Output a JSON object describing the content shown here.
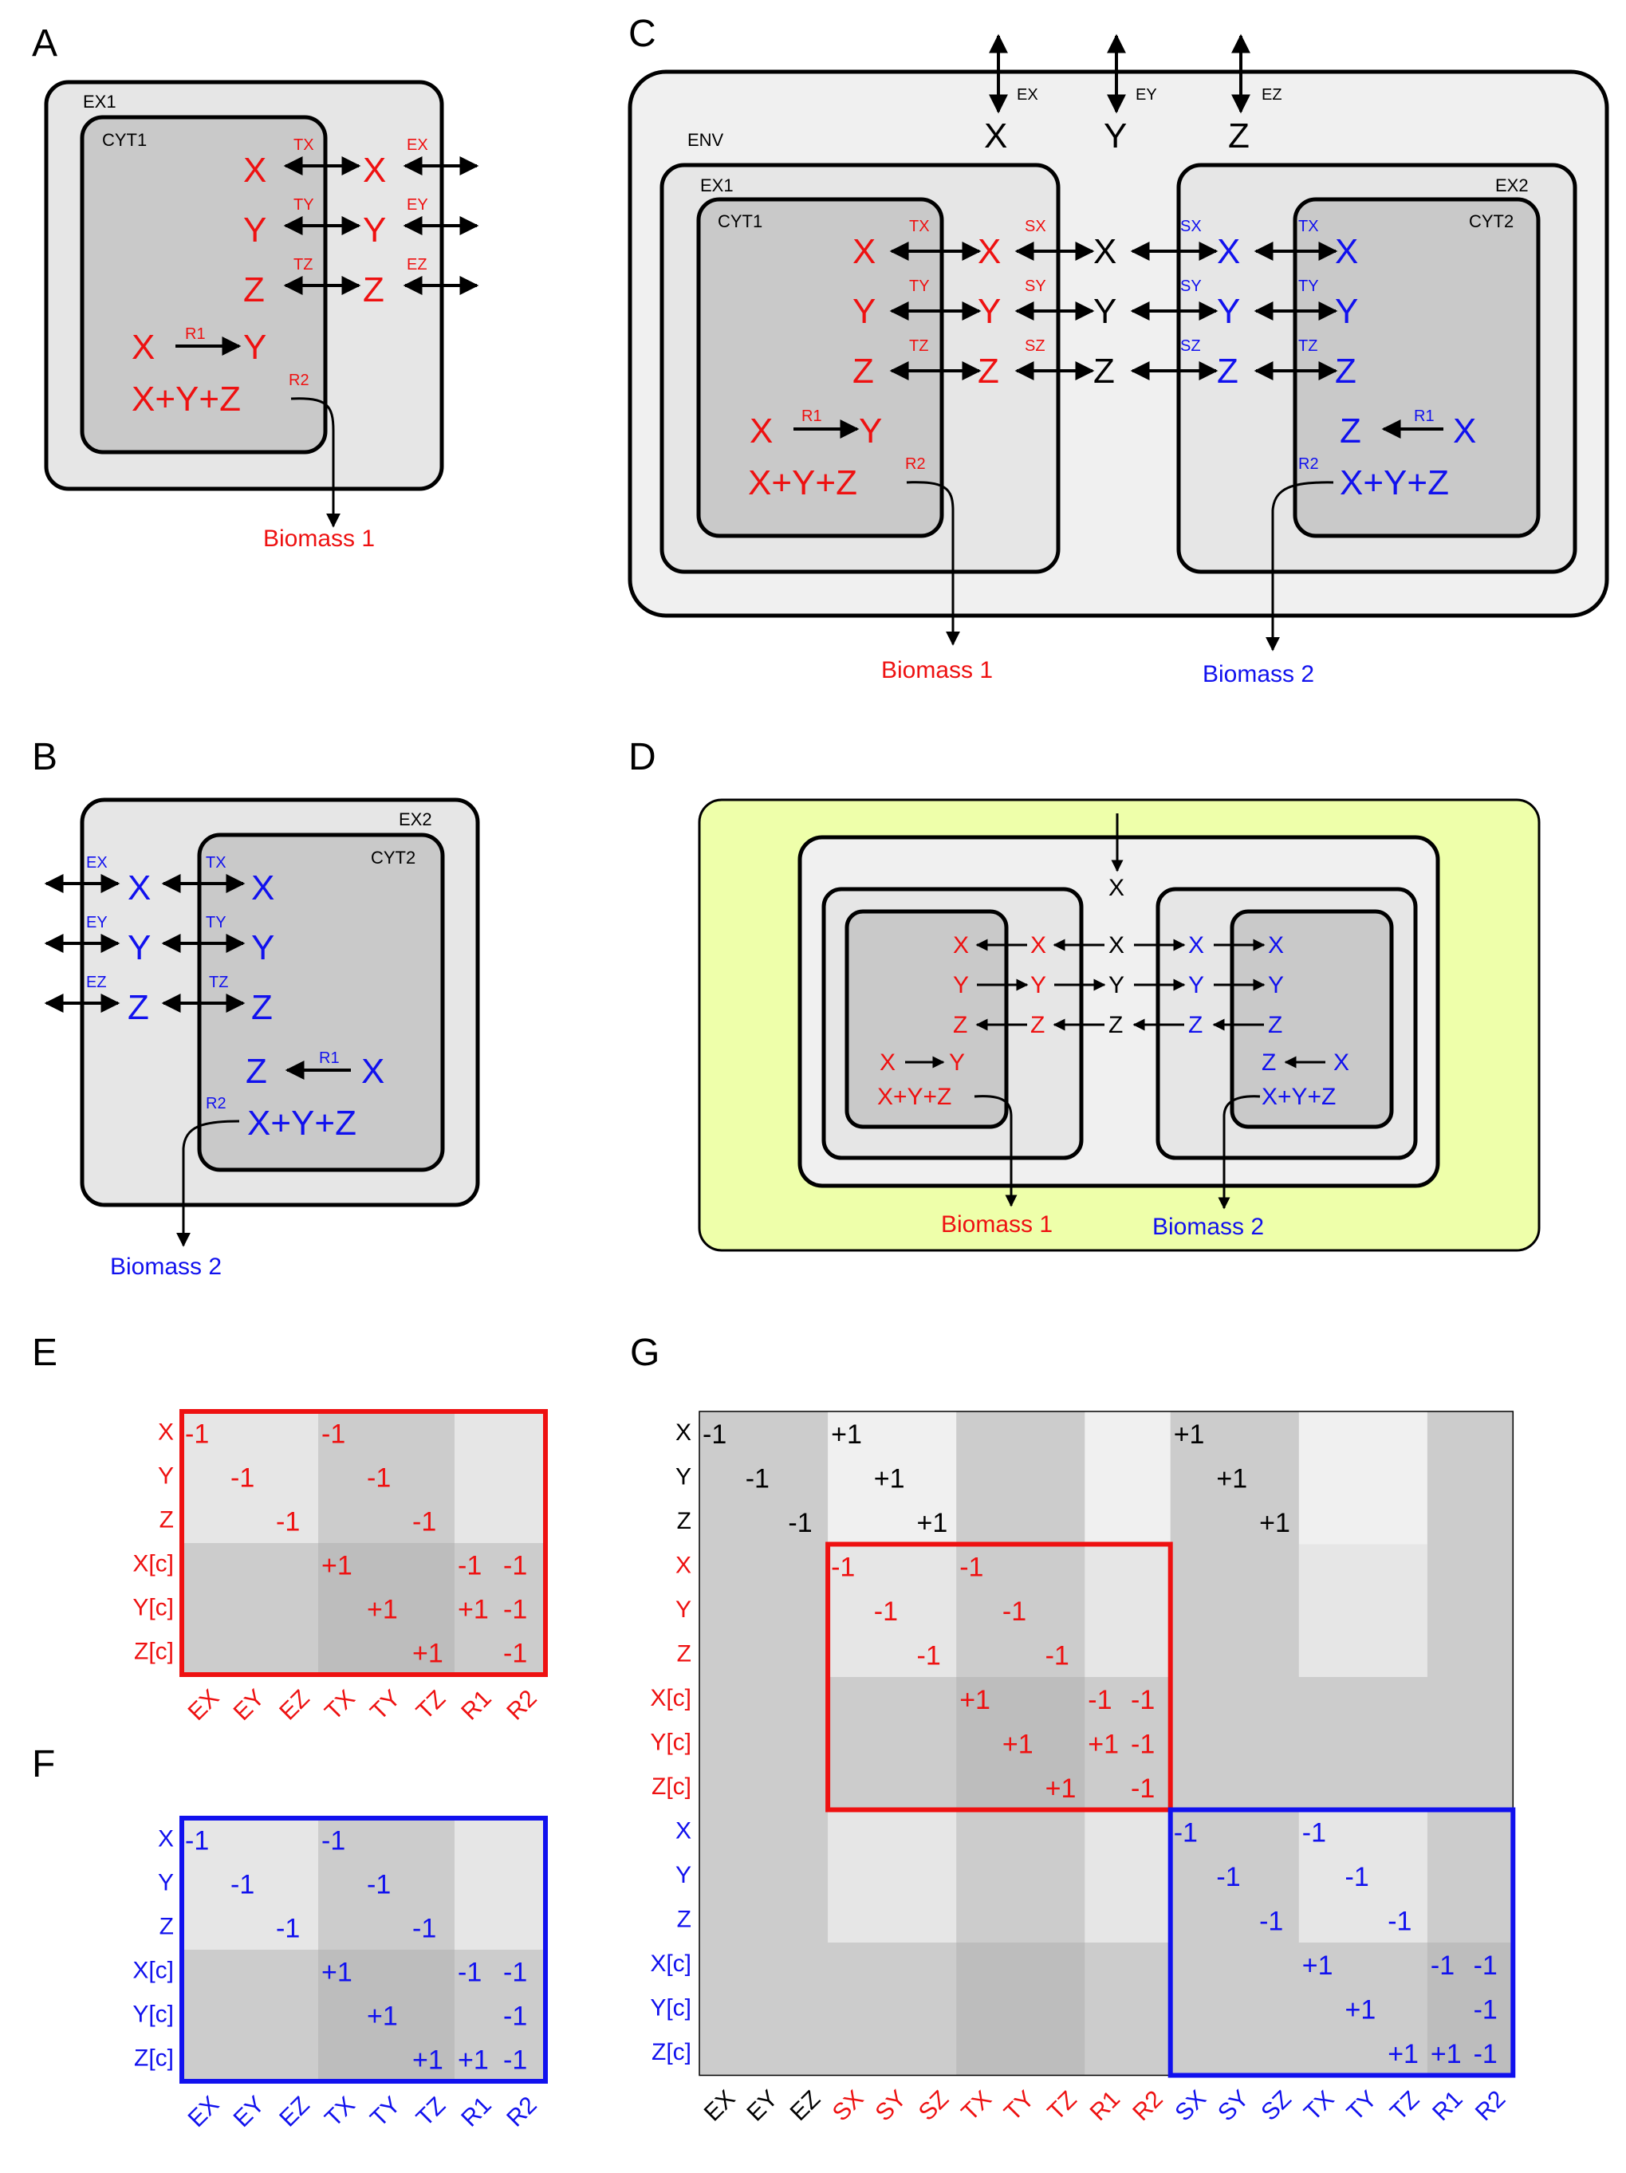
{
  "panels": {
    "A": {
      "letter": "A",
      "ex": "EX1",
      "cyt": "CYT1",
      "biomass": "Biomass 1"
    },
    "B": {
      "letter": "B",
      "ex": "EX2",
      "cyt": "CYT2",
      "biomass": "Biomass 2"
    },
    "C": {
      "letter": "C",
      "env": "ENV",
      "ex1": "EX1",
      "cyt1": "CYT1",
      "ex2": "EX2",
      "cyt2": "CYT2",
      "biomass1": "Biomass 1",
      "biomass2": "Biomass 2"
    },
    "D": {
      "letter": "D",
      "biomass1": "Biomass 1",
      "biomass2": "Biomass 2"
    },
    "E": {
      "letter": "E"
    },
    "F": {
      "letter": "F"
    },
    "G": {
      "letter": "G"
    }
  },
  "species": [
    "X",
    "Y",
    "Z"
  ],
  "labels": {
    "transport": [
      "TX",
      "TY",
      "TZ"
    ],
    "exchange": [
      "EX",
      "EY",
      "EZ"
    ],
    "shuttle": [
      "SX",
      "SY",
      "SZ"
    ],
    "r1": "R1",
    "r2": "R2",
    "biomass_expr": "X+Y+Z"
  },
  "matrices": {
    "E": {
      "rows": [
        "X",
        "Y",
        "Z",
        "X[c]",
        "Y[c]",
        "Z[c]"
      ],
      "cols": [
        "EX",
        "EY",
        "EZ",
        "TX",
        "TY",
        "TZ",
        "R1",
        "R2"
      ],
      "entries": [
        [
          0,
          0,
          "-1"
        ],
        [
          0,
          3,
          "-1"
        ],
        [
          1,
          1,
          "-1"
        ],
        [
          1,
          4,
          "-1"
        ],
        [
          2,
          2,
          "-1"
        ],
        [
          2,
          5,
          "-1"
        ],
        [
          3,
          3,
          "+1"
        ],
        [
          3,
          6,
          "-1"
        ],
        [
          3,
          7,
          "-1"
        ],
        [
          4,
          4,
          "+1"
        ],
        [
          4,
          6,
          "+1"
        ],
        [
          4,
          7,
          "-1"
        ],
        [
          5,
          5,
          "+1"
        ],
        [
          5,
          7,
          "-1"
        ]
      ]
    },
    "F": {
      "rows": [
        "X",
        "Y",
        "Z",
        "X[c]",
        "Y[c]",
        "Z[c]"
      ],
      "cols": [
        "EX",
        "EY",
        "EZ",
        "TX",
        "TY",
        "TZ",
        "R1",
        "R2"
      ],
      "entries": [
        [
          0,
          0,
          "-1"
        ],
        [
          0,
          3,
          "-1"
        ],
        [
          1,
          1,
          "-1"
        ],
        [
          1,
          4,
          "-1"
        ],
        [
          2,
          2,
          "-1"
        ],
        [
          2,
          5,
          "-1"
        ],
        [
          3,
          3,
          "+1"
        ],
        [
          3,
          6,
          "-1"
        ],
        [
          3,
          7,
          "-1"
        ],
        [
          4,
          4,
          "+1"
        ],
        [
          4,
          7,
          "-1"
        ],
        [
          5,
          5,
          "+1"
        ],
        [
          5,
          6,
          "+1"
        ],
        [
          5,
          7,
          "-1"
        ]
      ]
    },
    "G": {
      "rows": [
        "X",
        "Y",
        "Z",
        "X",
        "Y",
        "Z",
        "X[c]",
        "Y[c]",
        "Z[c]",
        "X",
        "Y",
        "Z",
        "X[c]",
        "Y[c]",
        "Z[c]"
      ],
      "cols": [
        "EX",
        "EY",
        "EZ",
        "SX",
        "SY",
        "SZ",
        "TX",
        "TY",
        "TZ",
        "R1",
        "R2",
        "SX",
        "SY",
        "SZ",
        "TX",
        "TY",
        "TZ",
        "R1",
        "R2"
      ],
      "entries": [
        [
          0,
          0,
          "-1"
        ],
        [
          1,
          1,
          "-1"
        ],
        [
          2,
          2,
          "-1"
        ],
        [
          0,
          3,
          "+1"
        ],
        [
          1,
          4,
          "+1"
        ],
        [
          2,
          5,
          "+1"
        ],
        [
          0,
          11,
          "+1"
        ],
        [
          1,
          12,
          "+1"
        ],
        [
          2,
          13,
          "+1"
        ],
        [
          3,
          3,
          "-1"
        ],
        [
          3,
          6,
          "-1"
        ],
        [
          4,
          4,
          "-1"
        ],
        [
          4,
          7,
          "-1"
        ],
        [
          5,
          5,
          "-1"
        ],
        [
          5,
          8,
          "-1"
        ],
        [
          6,
          6,
          "+1"
        ],
        [
          6,
          9,
          "-1"
        ],
        [
          6,
          10,
          "-1"
        ],
        [
          7,
          7,
          "+1"
        ],
        [
          7,
          9,
          "+1"
        ],
        [
          7,
          10,
          "-1"
        ],
        [
          8,
          8,
          "+1"
        ],
        [
          8,
          10,
          "-1"
        ],
        [
          9,
          11,
          "-1"
        ],
        [
          9,
          14,
          "-1"
        ],
        [
          10,
          12,
          "-1"
        ],
        [
          10,
          15,
          "-1"
        ],
        [
          11,
          13,
          "-1"
        ],
        [
          11,
          16,
          "-1"
        ],
        [
          12,
          14,
          "+1"
        ],
        [
          12,
          17,
          "-1"
        ],
        [
          12,
          18,
          "-1"
        ],
        [
          13,
          15,
          "+1"
        ],
        [
          13,
          18,
          "-1"
        ],
        [
          14,
          16,
          "+1"
        ],
        [
          14,
          17,
          "+1"
        ],
        [
          14,
          18,
          "-1"
        ]
      ]
    }
  },
  "colors": {
    "org1": "#ee1111",
    "org2": "#1111ee",
    "env": "#000000",
    "medium": "#eeffaa"
  }
}
